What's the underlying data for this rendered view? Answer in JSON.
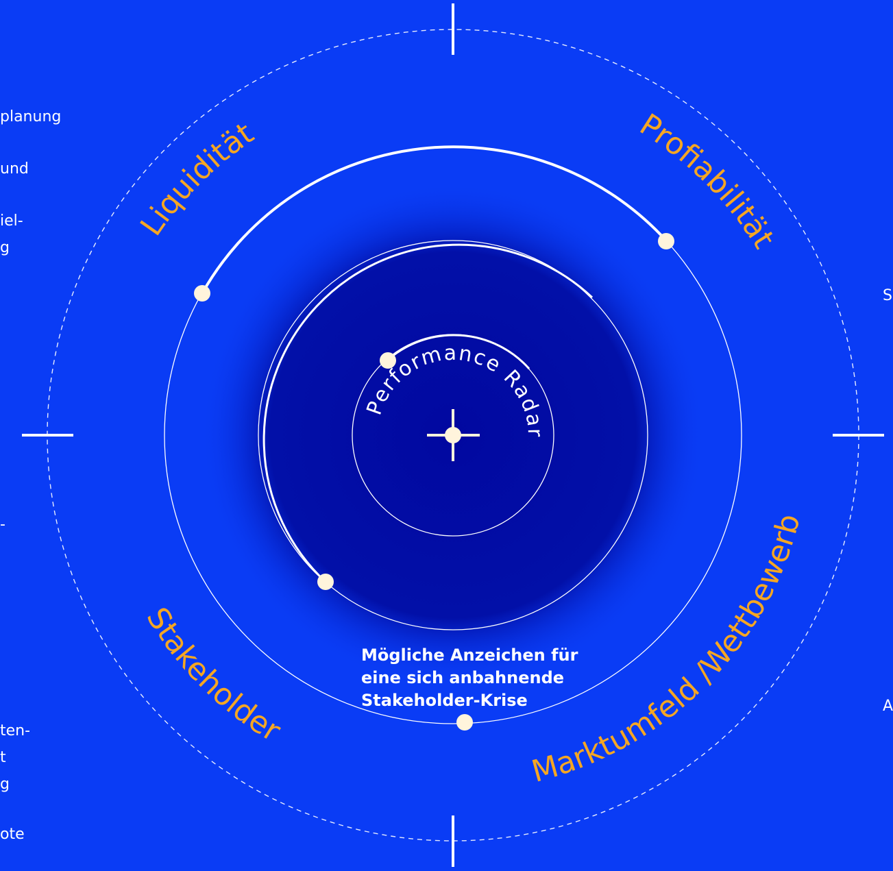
{
  "diagram": {
    "center_title": "Performance Radar",
    "categories": {
      "liquiditaet": "Liquidität",
      "profitabilitaet": "Profiabilität",
      "stakeholder": "Stakeholder",
      "marktumfeld": "Marktumfeld /Wettbewerb"
    },
    "caption_lines": [
      "Mögliche Anzeichen für",
      "eine sich anbahnende",
      "Stakeholder-Krise"
    ],
    "left_edge_fragments": [
      "planung",
      "und",
      "iel-",
      "g",
      "-",
      "ten-",
      "t",
      "g",
      "ote"
    ],
    "right_edge_fragments": [
      "S",
      "A"
    ],
    "colors": {
      "background": "#0a3cf5",
      "core": "#0108a0",
      "accent_orange": "#f5a623",
      "ring_white": "#ffffff",
      "marker_cream": "#fff4dc"
    }
  }
}
